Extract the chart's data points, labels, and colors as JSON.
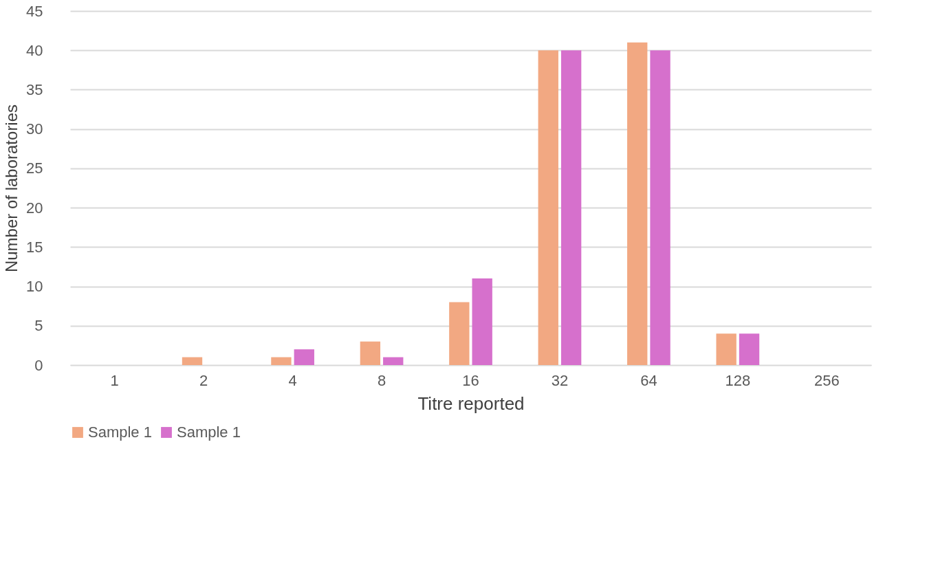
{
  "chart_data": {
    "type": "bar",
    "xlabel": "Titre reported",
    "ylabel": "Number of laboratories",
    "categories": [
      "1",
      "2",
      "4",
      "8",
      "16",
      "32",
      "64",
      "128",
      "256"
    ],
    "series": [
      {
        "name": "Sample 1",
        "color": "#f2a882",
        "values": [
          0,
          1,
          1,
          3,
          8,
          40,
          41,
          4,
          0
        ]
      },
      {
        "name": "Sample 1",
        "color": "#d670cc",
        "values": [
          0,
          0,
          2,
          1,
          11,
          40,
          40,
          4,
          0
        ]
      }
    ],
    "ylim": [
      0,
      45
    ],
    "yticks": [
      0,
      5,
      10,
      15,
      20,
      25,
      30,
      35,
      40,
      45
    ],
    "grid": "y",
    "legend": "bottom"
  }
}
